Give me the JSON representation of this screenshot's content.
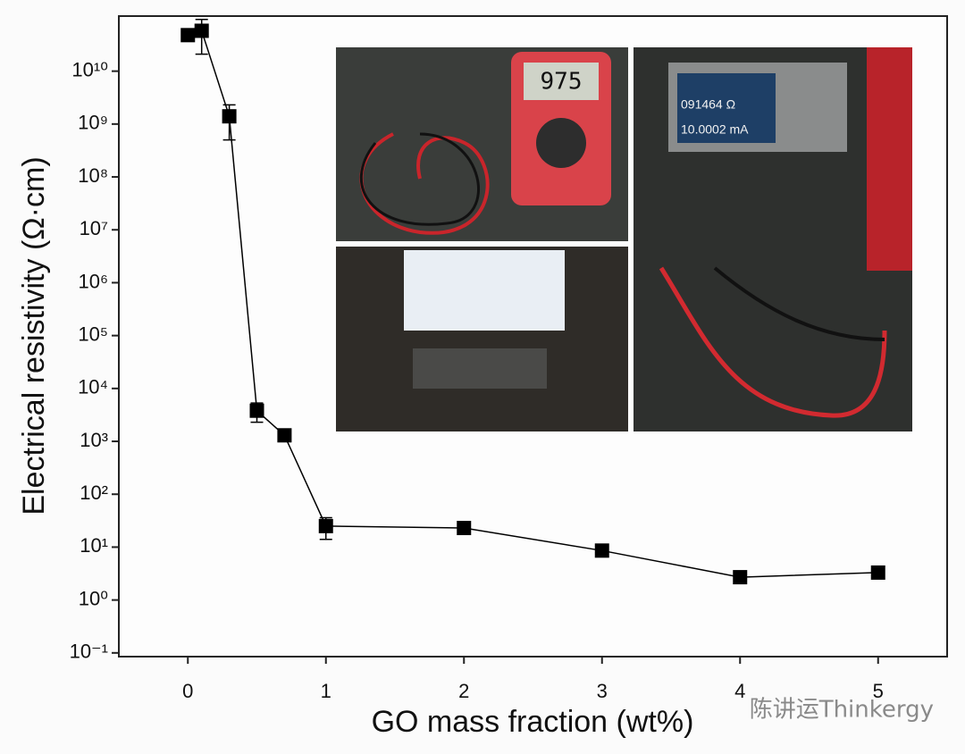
{
  "chart_data": {
    "type": "scatter",
    "x_label": "GO mass fraction (wt%)",
    "y_label": "Electrical resistivity (Ω·cm)",
    "x": [
      0,
      0.1,
      0.3,
      0.5,
      0.7,
      1,
      2,
      3,
      4,
      5
    ],
    "values": [
      48000000000,
      58000000000,
      1400000000,
      3800,
      1300,
      25,
      23,
      8.6,
      2.7,
      3.3
    ],
    "errors": [
      null,
      37000000000,
      900000000,
      1500,
      null,
      11,
      null,
      null,
      null,
      null
    ],
    "color": "#000000",
    "connect": true,
    "log_y": true,
    "xlim": [
      -0.5,
      5.5
    ],
    "xticks": [
      0,
      1,
      2,
      3,
      4,
      5
    ],
    "ylim": [
      0.085,
      110000000000
    ],
    "yticks": [
      {
        "value": 0.1,
        "label": "10⁻¹"
      },
      {
        "value": 1,
        "label": "10⁰"
      },
      {
        "value": 10,
        "label": "10¹"
      },
      {
        "value": 100,
        "label": "10²"
      },
      {
        "value": 1000,
        "label": "10³"
      },
      {
        "value": 10000,
        "label": "10⁴"
      },
      {
        "value": 100000,
        "label": "10⁵"
      },
      {
        "value": 1000000,
        "label": "10⁶"
      },
      {
        "value": 10000000,
        "label": "10⁷"
      },
      {
        "value": 100000000,
        "label": "10⁸"
      },
      {
        "value": 1000000000,
        "label": "10⁹"
      },
      {
        "value": 10000000000,
        "label": "10¹⁰"
      }
    ],
    "annotations": [
      "975",
      "091464 Ω",
      "10.0002 mA"
    ],
    "watermark": "陈讲运Thinkergy"
  }
}
